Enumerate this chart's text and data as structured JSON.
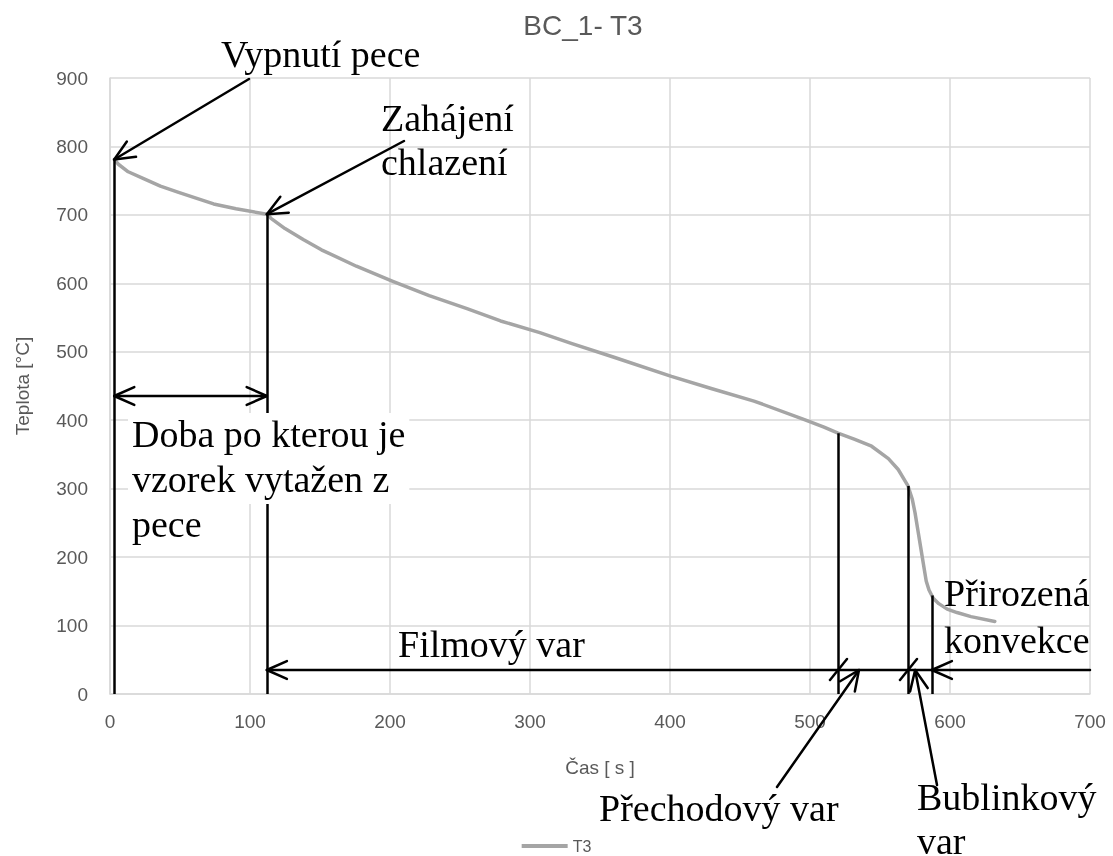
{
  "chart_data": {
    "type": "line",
    "title": "BC_1- T3",
    "xlabel": "Čas [ s ]",
    "ylabel": "Teplota [°C]",
    "x": [
      3,
      6,
      13,
      24,
      36,
      49,
      62,
      74,
      90,
      112,
      115,
      125,
      138,
      151,
      176,
      202,
      228,
      255,
      279,
      307,
      330,
      360,
      401,
      430,
      460,
      496,
      510,
      520,
      532,
      544,
      556,
      563,
      570,
      573,
      575,
      577,
      579,
      581,
      583,
      585,
      588,
      592,
      598,
      605,
      615,
      632
    ],
    "series": [
      {
        "name": "T3",
        "color": "#a5a5a5",
        "values": [
          781,
          774,
          763,
          753,
          742,
          733,
          724,
          716,
          709,
          701,
          695,
          680,
          664,
          649,
          625,
          603,
          582,
          563,
          545,
          528,
          512,
          492,
          464,
          446,
          428,
          401,
          390,
          381,
          372,
          362,
          344,
          328,
          304,
          285,
          265,
          240,
          215,
          190,
          165,
          152,
          140,
          132,
          124,
          119,
          113,
          106
        ]
      }
    ],
    "xlim": [
      0,
      700
    ],
    "xticks": [
      0,
      100,
      200,
      300,
      400,
      500,
      600,
      700
    ],
    "ylim": [
      0,
      900
    ],
    "yticks": [
      0,
      100,
      200,
      300,
      400,
      500,
      600,
      700,
      800,
      900
    ],
    "grid": true,
    "legend": "bottom",
    "marker": "none",
    "ref_lines": [
      {
        "axis": "x",
        "value": 3,
        "color": "#000000"
      },
      {
        "axis": "x",
        "value": 112,
        "color": "#000000"
      },
      {
        "axis": "x",
        "value": 520,
        "color": "#000000"
      },
      {
        "axis": "x",
        "value": 570,
        "color": "#000000"
      },
      {
        "axis": "x",
        "value": 587,
        "color": "#000000"
      }
    ],
    "annotations": [
      {
        "text": "Vypnutí pece",
        "x": 3,
        "y": 781
      },
      {
        "text": "Zahájení chlazení",
        "x": 112,
        "y": 701
      },
      "Doba po kterou je vzorek vytažen z pece",
      "Filmový var",
      "Přechodový var",
      "Bublinkový var",
      "Přirozená konvekce"
    ]
  }
}
